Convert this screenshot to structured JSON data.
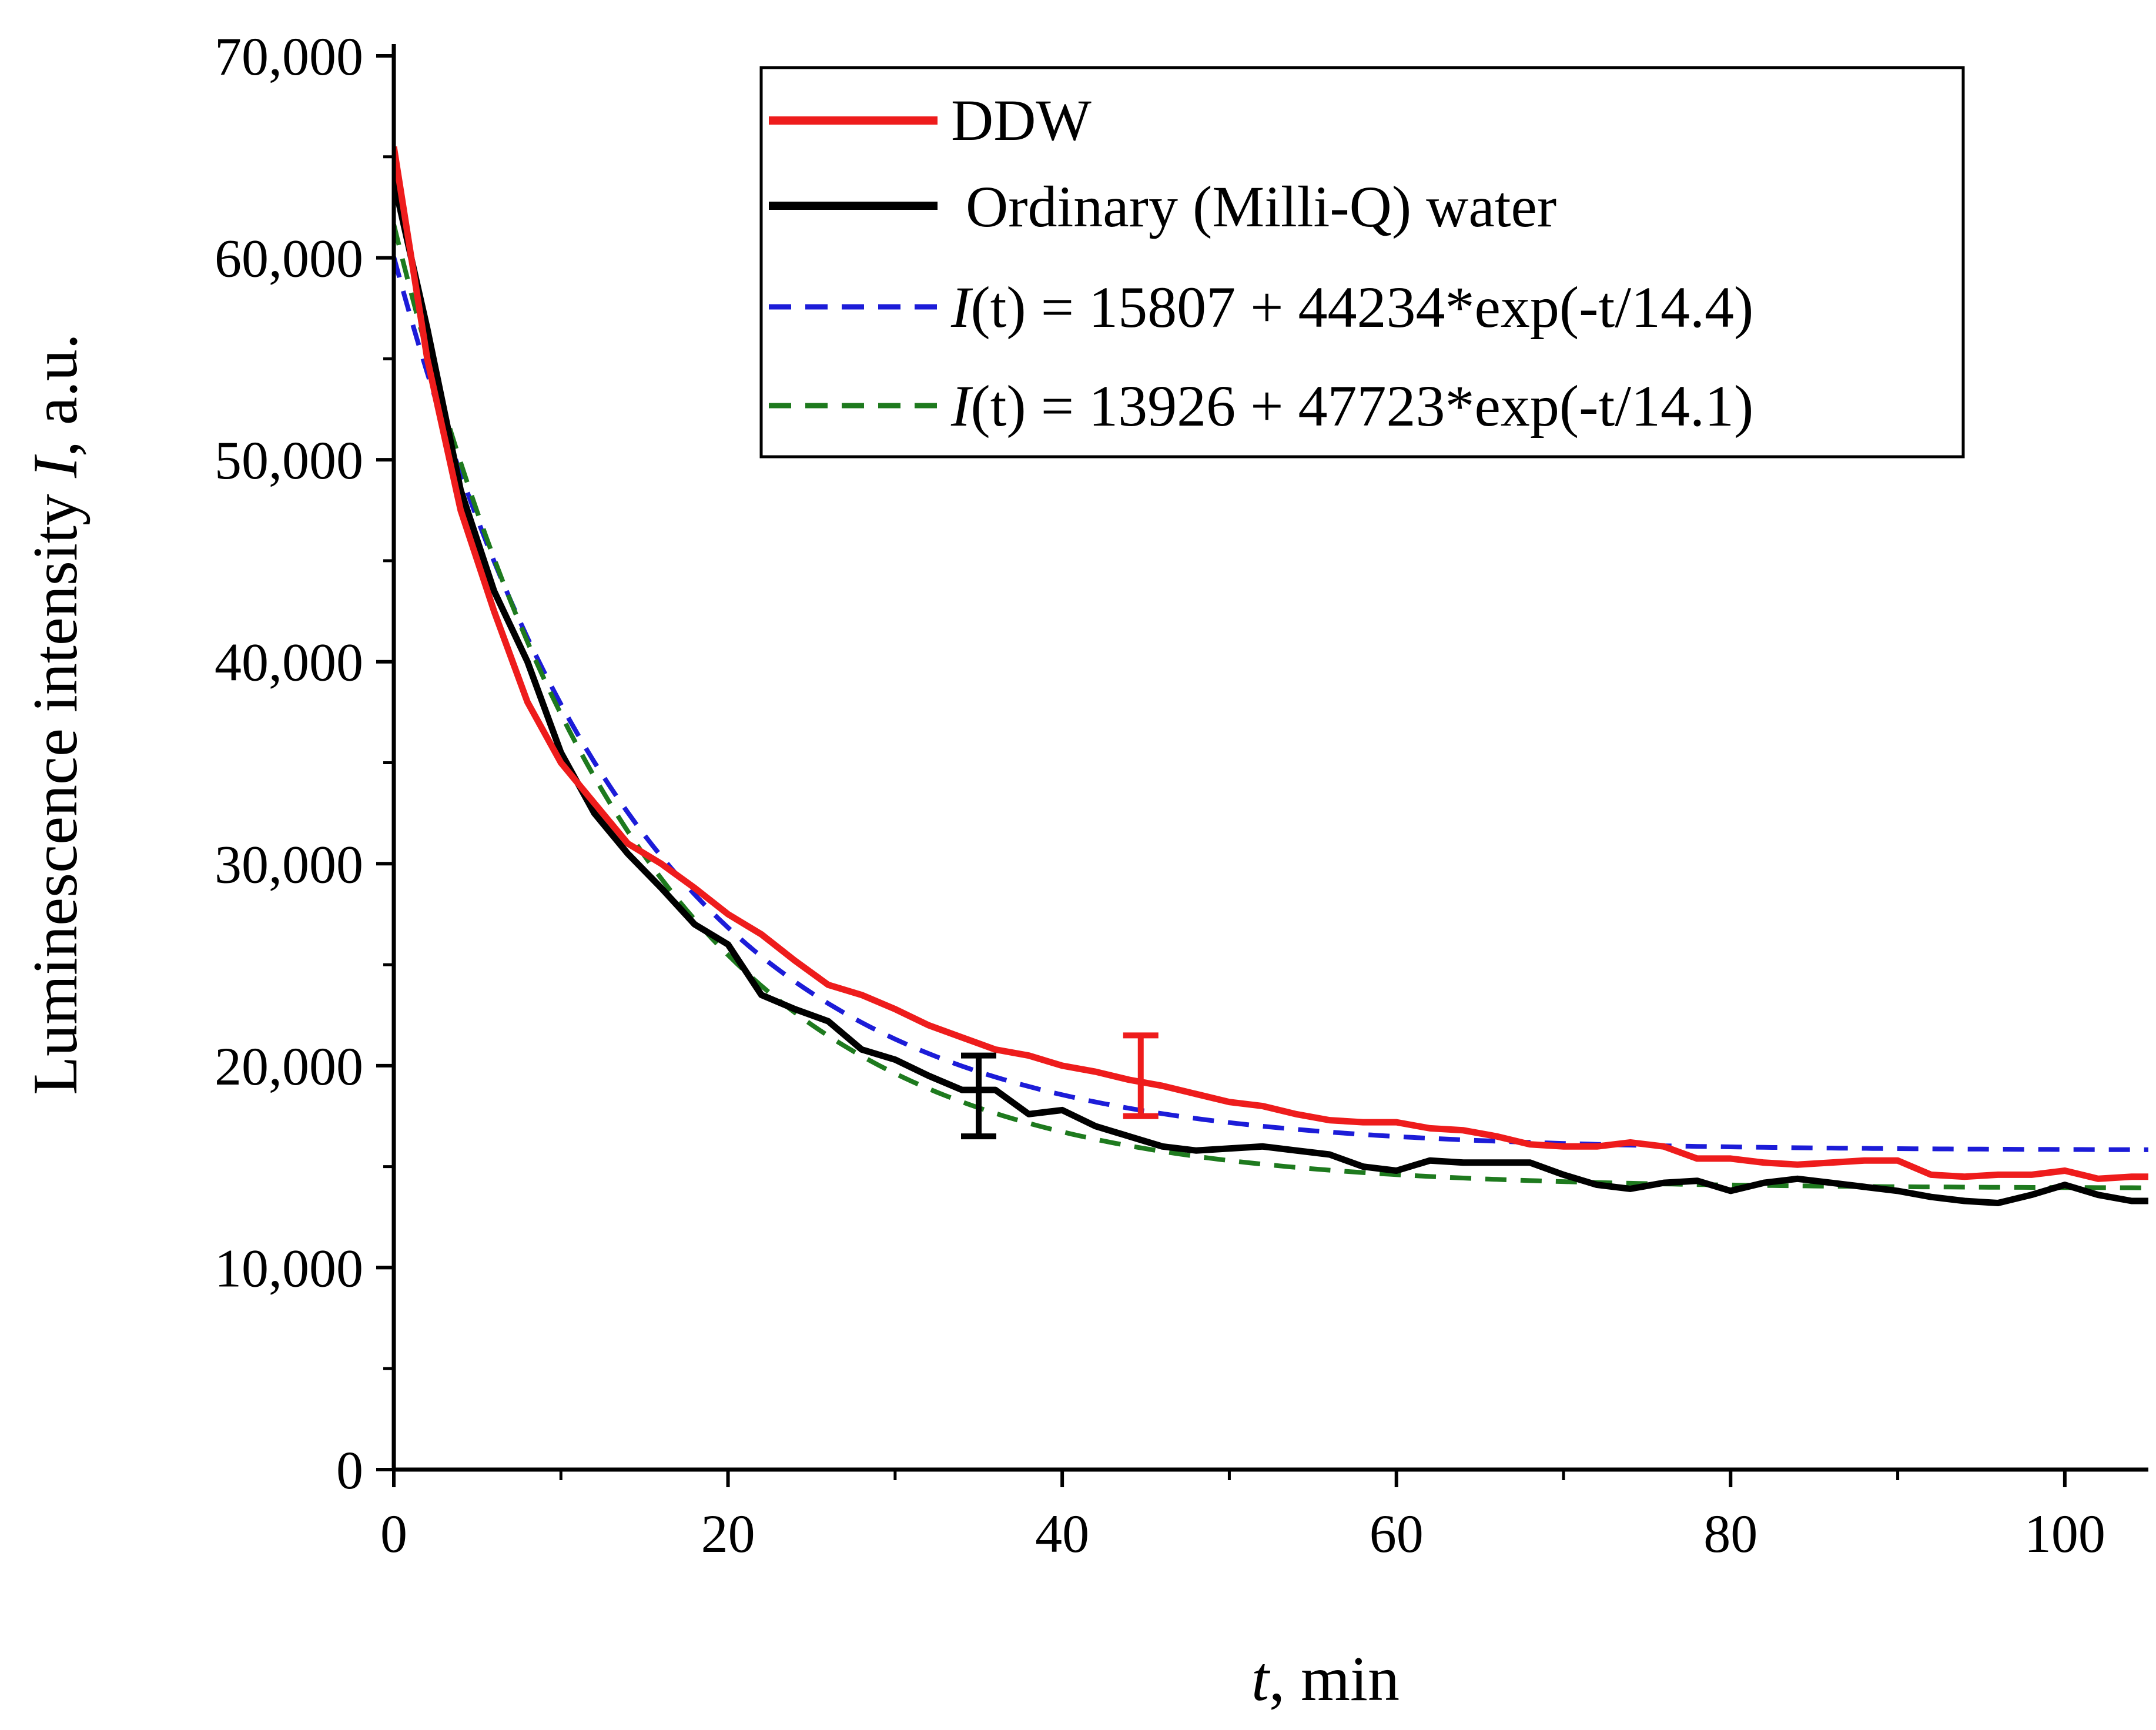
{
  "chart_data": {
    "type": "line",
    "title": "",
    "xlabel": "t, min",
    "xlabel_var": "t",
    "xlabel_rest": ", min",
    "ylabel": "Luminescence intensity I, a.u.",
    "ylabel_pre": "Luminescence intensity ",
    "ylabel_var": "I",
    "ylabel_post": ", a.u.",
    "xlim": [
      0,
      105
    ],
    "ylim": [
      0,
      70000
    ],
    "x_major_ticks": [
      0,
      20,
      40,
      60,
      80,
      100
    ],
    "x_tick_labels": [
      "0",
      "20",
      "40",
      "60",
      "80",
      "100"
    ],
    "x_minor_ticks": [
      10,
      30,
      50,
      70,
      90
    ],
    "y_major_ticks": [
      0,
      10000,
      20000,
      30000,
      40000,
      50000,
      60000,
      70000
    ],
    "y_tick_labels": [
      "0",
      "10,000",
      "20,000",
      "30,000",
      "40,000",
      "50,000",
      "60,000",
      "70,000"
    ],
    "y_minor_ticks": [
      5000,
      15000,
      25000,
      35000,
      45000,
      55000,
      65000
    ],
    "grid": false,
    "legend_position": "top-right",
    "legend": [
      {
        "key": "ddw",
        "label": "DDW"
      },
      {
        "key": "ordinary",
        "label": " Ordinary (Milli-Q) water"
      },
      {
        "key": "fit_blue",
        "label_var": "I",
        "label_paren": "(t)",
        "label_rest": " = 15807 + 44234*exp(-t/14.4)",
        "label_full": "I(t) = 15807 + 44234*exp(-t/14.4)"
      },
      {
        "key": "fit_green",
        "label_var": "I",
        "label_paren": "(t)",
        "label_rest": " = 13926 + 47723*exp(-t/14.1)",
        "label_full": "I(t) = 13926 + 47723*exp(-t/14.1)"
      }
    ],
    "series": [
      {
        "key": "ddw",
        "name": "DDW",
        "color": "#ee1c1c",
        "style": "solid",
        "x": [
          0,
          2,
          4,
          6,
          8,
          10,
          12,
          14,
          16,
          18,
          20,
          22,
          24,
          26,
          28,
          30,
          32,
          34,
          36,
          38,
          40,
          42,
          44,
          46,
          48,
          50,
          52,
          54,
          56,
          58,
          60,
          62,
          64,
          66,
          68,
          70,
          72,
          74,
          76,
          78,
          80,
          82,
          84,
          86,
          88,
          90,
          92,
          94,
          96,
          98,
          100,
          102,
          104,
          105
        ],
        "y": [
          65500,
          55000,
          47500,
          42500,
          38000,
          35000,
          33000,
          31000,
          30000,
          28800,
          27500,
          26500,
          25200,
          24000,
          23500,
          22800,
          22000,
          21400,
          20800,
          20500,
          20000,
          19700,
          19300,
          19000,
          18600,
          18200,
          18000,
          17600,
          17300,
          17200,
          17200,
          16900,
          16800,
          16500,
          16100,
          16000,
          16000,
          16200,
          16000,
          15400,
          15400,
          15200,
          15100,
          15200,
          15300,
          15300,
          14600,
          14500,
          14600,
          14600,
          14800,
          14400,
          14500,
          14500
        ]
      },
      {
        "key": "ordinary",
        "name": "Ordinary (Milli-Q) water",
        "color": "#000000",
        "style": "solid",
        "x": [
          0,
          2,
          4,
          6,
          8,
          10,
          12,
          14,
          16,
          18,
          20,
          22,
          24,
          26,
          28,
          30,
          32,
          34,
          36,
          38,
          40,
          42,
          44,
          46,
          48,
          50,
          52,
          54,
          56,
          58,
          60,
          62,
          64,
          66,
          68,
          70,
          72,
          74,
          76,
          78,
          80,
          82,
          84,
          86,
          88,
          90,
          92,
          94,
          96,
          98,
          100,
          102,
          104,
          105
        ],
        "y": [
          63800,
          56500,
          48500,
          43500,
          40000,
          35500,
          32500,
          30500,
          28800,
          27000,
          26000,
          23500,
          22800,
          22200,
          20800,
          20300,
          19500,
          18800,
          18800,
          17600,
          17800,
          17000,
          16500,
          16000,
          15800,
          15900,
          16000,
          15800,
          15600,
          15000,
          14800,
          15300,
          15200,
          15200,
          15200,
          14600,
          14100,
          13900,
          14200,
          14300,
          13800,
          14200,
          14400,
          14200,
          14000,
          13800,
          13500,
          13300,
          13200,
          13600,
          14100,
          13600,
          13300,
          13300
        ]
      },
      {
        "key": "fit_blue",
        "name": "I(t) = 15807 + 44234*exp(-t/14.4)",
        "color": "#1c1cd8",
        "style": "dashed",
        "fit": {
          "a": 15807,
          "b": 44234,
          "tau": 14.4
        }
      },
      {
        "key": "fit_green",
        "name": "I(t) = 13926 + 47723*exp(-t/14.1)",
        "color": "#1e7a1e",
        "style": "dashed",
        "fit": {
          "a": 13926,
          "b": 47723,
          "tau": 14.1
        }
      }
    ],
    "error_bars": [
      {
        "series": "ordinary",
        "x": 35,
        "y": 18600,
        "low": 16500,
        "high": 20500,
        "color": "#000000"
      },
      {
        "series": "ddw",
        "x": 44.7,
        "y": 19400,
        "low": 17500,
        "high": 21500,
        "color": "#ee1c1c"
      }
    ]
  }
}
